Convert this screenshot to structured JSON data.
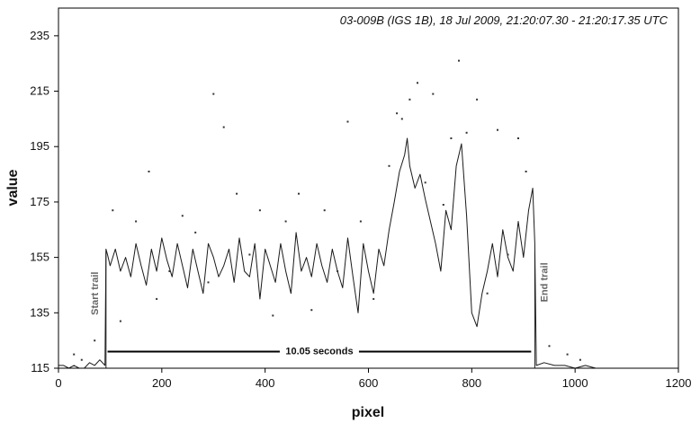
{
  "chart_data": {
    "type": "line",
    "title": "03-009B (IGS 1B),   18 Jul 2009,   21:20:07.30 - 21:20:17.35 UTC",
    "xlabel": "pixel",
    "ylabel": "value",
    "xlim": [
      0,
      1200
    ],
    "ylim": [
      115,
      245
    ],
    "xticks": [
      0,
      200,
      400,
      600,
      800,
      1000,
      1200
    ],
    "yticks": [
      115,
      135,
      155,
      175,
      195,
      215,
      235
    ],
    "grid": false,
    "annotations": {
      "start_trail": {
        "label": "Start trail",
        "x": 92
      },
      "end_trail": {
        "label": "End trail",
        "x": 922
      },
      "duration": {
        "label": "10.05 seconds",
        "x_start": 95,
        "x_end": 915,
        "y": 121
      }
    },
    "series": [
      {
        "style": "line",
        "x": [
          0,
          10,
          20,
          30,
          40,
          50,
          60,
          70,
          80,
          90,
          92,
          95,
          100,
          110,
          120,
          130,
          140,
          150,
          160,
          170,
          180,
          190,
          200,
          210,
          220,
          230,
          240,
          250,
          260,
          270,
          280,
          290,
          300,
          310,
          320,
          330,
          340,
          350,
          360,
          370,
          380,
          390,
          400,
          410,
          420,
          430,
          440,
          450,
          460,
          470,
          480,
          490,
          500,
          510,
          520,
          530,
          540,
          550,
          560,
          570,
          580,
          590,
          600,
          610,
          620,
          630,
          640,
          650,
          660,
          670,
          675,
          680,
          690,
          700,
          710,
          720,
          730,
          740,
          750,
          760,
          770,
          780,
          790,
          800,
          810,
          820,
          830,
          840,
          850,
          860,
          870,
          880,
          890,
          900,
          910,
          918,
          922,
          925,
          940,
          960,
          980,
          1000,
          1020,
          1040
        ],
        "values": [
          116,
          116,
          115,
          116,
          115,
          115,
          117,
          116,
          118,
          116,
          158,
          156,
          152,
          158,
          150,
          155,
          148,
          160,
          152,
          145,
          158,
          150,
          162,
          154,
          148,
          160,
          152,
          144,
          158,
          150,
          142,
          160,
          155,
          148,
          152,
          158,
          146,
          162,
          150,
          148,
          160,
          140,
          158,
          152,
          146,
          160,
          150,
          142,
          164,
          150,
          155,
          148,
          160,
          152,
          146,
          158,
          150,
          144,
          162,
          148,
          135,
          160,
          150,
          142,
          158,
          152,
          165,
          175,
          186,
          192,
          198,
          188,
          180,
          185,
          176,
          168,
          160,
          150,
          172,
          165,
          188,
          196,
          170,
          135,
          130,
          142,
          150,
          160,
          148,
          165,
          155,
          150,
          168,
          155,
          172,
          180,
          160,
          116,
          117,
          116,
          116,
          115,
          116,
          115
        ]
      },
      {
        "style": "points",
        "x": [
          30,
          45,
          70,
          105,
          120,
          150,
          175,
          190,
          215,
          240,
          265,
          290,
          300,
          320,
          345,
          370,
          390,
          415,
          440,
          465,
          490,
          515,
          540,
          560,
          585,
          610,
          640,
          655,
          665,
          680,
          695,
          710,
          725,
          745,
          760,
          775,
          790,
          810,
          830,
          850,
          870,
          890,
          905,
          950,
          985,
          1010
        ],
        "values": [
          120,
          118,
          125,
          172,
          132,
          168,
          186,
          140,
          150,
          170,
          164,
          146,
          214,
          202,
          178,
          156,
          172,
          134,
          168,
          178,
          136,
          172,
          150,
          204,
          168,
          140,
          188,
          207,
          205,
          212,
          218,
          182,
          214,
          174,
          198,
          226,
          200,
          212,
          142,
          201,
          156,
          198,
          186,
          123,
          120,
          118
        ]
      }
    ]
  }
}
